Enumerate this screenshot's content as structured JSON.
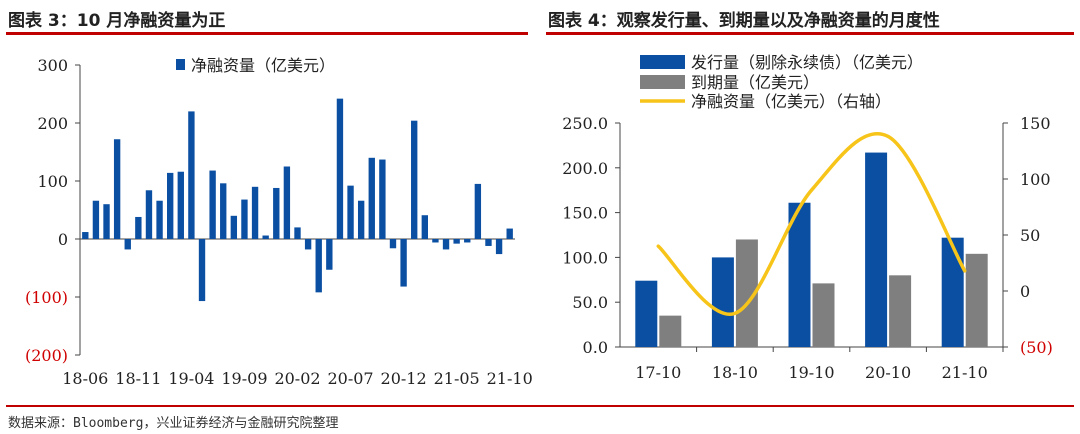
{
  "left_title": "图表 3：10 月净融资量为正",
  "right_title": "图表 4：观察发行量、到期量以及净融资量的月度性",
  "source": "数据来源：Bloomberg，兴业证券经济与金融研究院整理",
  "colors": {
    "accent_red": "#c00000",
    "bar_blue": "#0b4fa3",
    "bar_gray": "#7f7f7f",
    "line_gold": "#f7c41a",
    "negative_label": "#d00000"
  },
  "chart_data": [
    {
      "type": "bar",
      "title": "10 月净融资量为正",
      "legend": [
        "净融资量（亿美元）"
      ],
      "legend_position": "top",
      "ylim": [
        -200,
        300
      ],
      "yticks": [
        300,
        200,
        100,
        0,
        -100,
        -200
      ],
      "ytick_labels": [
        "300",
        "200",
        "100",
        "0",
        "(100)",
        "(200)"
      ],
      "xtick_labels": [
        "18-06",
        "18-11",
        "19-04",
        "19-09",
        "20-02",
        "20-07",
        "20-12",
        "21-05",
        "21-10"
      ],
      "x": [
        "18-06",
        "18-07",
        "18-08",
        "18-09",
        "18-10",
        "18-11",
        "18-12",
        "19-01",
        "19-02",
        "19-03",
        "19-04",
        "19-05",
        "19-06",
        "19-07",
        "19-08",
        "19-09",
        "19-10",
        "19-11",
        "19-12",
        "20-01",
        "20-02",
        "20-03",
        "20-04",
        "20-05",
        "20-06",
        "20-07",
        "20-08",
        "20-09",
        "20-10",
        "20-11",
        "20-12",
        "21-01",
        "21-02",
        "21-03",
        "21-04",
        "21-05",
        "21-06",
        "21-07",
        "21-08",
        "21-09",
        "21-10"
      ],
      "series": [
        {
          "name": "净融资量（亿美元）",
          "values": [
            12,
            66,
            60,
            172,
            -18,
            38,
            84,
            66,
            114,
            116,
            220,
            -107,
            118,
            96,
            40,
            68,
            90,
            6,
            88,
            125,
            20,
            -18,
            -92,
            -53,
            242,
            92,
            66,
            140,
            137,
            -16,
            -82,
            204,
            41,
            -6,
            -18,
            -8,
            -6,
            95,
            -12,
            -26,
            18
          ]
        }
      ]
    },
    {
      "type": "bar",
      "title": "观察发行量、到期量以及净融资量的月度性",
      "legend": [
        "发行量（剔除永续债）（亿美元）",
        "到期量（亿美元）",
        "净融资量（亿美元）（右轴）"
      ],
      "legend_position": "top",
      "categories": [
        "17-10",
        "18-10",
        "19-10",
        "20-10",
        "21-10"
      ],
      "ylim": [
        0,
        250
      ],
      "yticks": [
        250,
        200,
        150,
        100,
        50,
        0
      ],
      "ytick_labels": [
        "250.0",
        "200.0",
        "150.0",
        "100.0",
        "50.0",
        "0.0"
      ],
      "y2lim": [
        -50,
        150
      ],
      "y2ticks": [
        150,
        100,
        50,
        0,
        -50
      ],
      "y2tick_labels": [
        "150",
        "100",
        "50",
        "0",
        "(50)"
      ],
      "series": [
        {
          "name": "发行量（剔除永续债）（亿美元）",
          "type": "bar",
          "axis": "left",
          "values": [
            74,
            100,
            161,
            217,
            122
          ]
        },
        {
          "name": "到期量（亿美元）",
          "type": "bar",
          "axis": "left",
          "values": [
            35,
            120,
            71,
            80,
            104
          ]
        },
        {
          "name": "净融资量（亿美元）（右轴）",
          "type": "line",
          "axis": "right",
          "values": [
            40,
            -20,
            90,
            138,
            18
          ]
        }
      ]
    }
  ]
}
